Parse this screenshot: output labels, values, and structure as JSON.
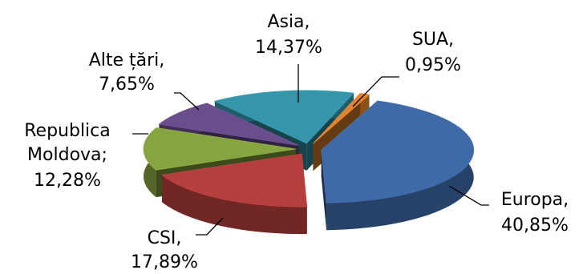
{
  "chart_data": {
    "type": "pie",
    "title": "",
    "style": "3d-exploded",
    "slices": [
      {
        "category": "SUA",
        "value": 0.95,
        "value_label": "0,95%",
        "color": "#e1832c"
      },
      {
        "category": "Europa",
        "value": 40.85,
        "value_label": "40,85%",
        "color": "#3f6aa8"
      },
      {
        "category": "CSI",
        "value": 17.89,
        "value_label": "17,89%",
        "color": "#b43f3c"
      },
      {
        "category": "Republica Moldova",
        "value": 12.28,
        "value_label": "12,28%",
        "color": "#86a43f"
      },
      {
        "category": "Alte țări",
        "value": 7.65,
        "value_label": "7,65%",
        "color": "#6a4d8c"
      },
      {
        "category": "Asia",
        "value": 14.37,
        "value_label": "14,37%",
        "color": "#3495ab"
      }
    ],
    "labels": {
      "sua": {
        "line1": "SUA,",
        "line2": "0,95%"
      },
      "europa": {
        "line1": "Europa,",
        "line2": "40,85%"
      },
      "csi": {
        "line1": "CSI,",
        "line2": "17,89%"
      },
      "moldova": {
        "line1": "Republica",
        "line2": "Moldova;",
        "line3": "12,28%"
      },
      "alte": {
        "line1": "Alte țări,",
        "line2": "7,65%"
      },
      "asia": {
        "line1": "Asia,",
        "line2": "14,37%"
      }
    }
  }
}
